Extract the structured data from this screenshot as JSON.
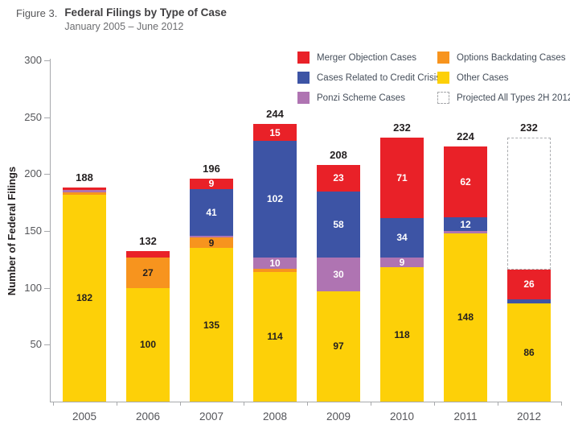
{
  "header": {
    "figure_label": "Figure 3.",
    "title": "Federal Filings by Type of Case",
    "subtitle": "January 2005 – June 2012"
  },
  "chart_data": {
    "type": "bar",
    "subtype": "stacked",
    "title": "Federal Filings by Type of Case",
    "subtitle": "January 2005 – June 2012",
    "xlabel": "",
    "ylabel": "Number of Federal Filings",
    "ylim": [
      0,
      300
    ],
    "yticks": [
      50,
      100,
      150,
      200,
      250,
      300
    ],
    "grid": false,
    "legend_position": "top-right",
    "series": [
      {
        "id": "merger",
        "label": "Merger Objection Cases",
        "color": "#E92128",
        "value_label_color": "#FFFFFF"
      },
      {
        "id": "credit",
        "label": "Cases Related to Credit Crisis",
        "color": "#3D54A5",
        "value_label_color": "#FFFFFF"
      },
      {
        "id": "ponzi",
        "label": "Ponzi Scheme Cases",
        "color": "#AF74B2",
        "value_label_color": "#FFFFFF"
      },
      {
        "id": "options",
        "label": "Options Backdating Cases",
        "color": "#F7941E",
        "value_label_color": "#231F20"
      },
      {
        "id": "other",
        "label": "Other Cases",
        "color": "#FDD008",
        "value_label_color": "#231F20"
      },
      {
        "id": "projected",
        "label": "Projected All Types 2H 2012",
        "swatch": "dashed"
      }
    ],
    "legend_order": [
      "merger",
      "options",
      "credit",
      "other",
      "ponzi",
      "projected"
    ],
    "categories": [
      "2005",
      "2006",
      "2007",
      "2008",
      "2009",
      "2010",
      "2011",
      "2012"
    ],
    "bars": [
      {
        "category": "2005",
        "total": 188,
        "segments": [
          {
            "series": "other",
            "value": 182,
            "label": "182"
          },
          {
            "series": "options",
            "value": 2
          },
          {
            "series": "ponzi",
            "value": 2
          },
          {
            "series": "merger",
            "value": 2
          }
        ]
      },
      {
        "category": "2006",
        "total": 132,
        "segments": [
          {
            "series": "other",
            "value": 100,
            "label": "100"
          },
          {
            "series": "options",
            "value": 27,
            "label": "27"
          },
          {
            "series": "merger",
            "value": 5
          }
        ]
      },
      {
        "category": "2007",
        "total": 196,
        "segments": [
          {
            "series": "other",
            "value": 135,
            "label": "135"
          },
          {
            "series": "options",
            "value": 9,
            "label": "9"
          },
          {
            "series": "ponzi",
            "value": 2
          },
          {
            "series": "credit",
            "value": 41,
            "label": "41"
          },
          {
            "series": "merger",
            "value": 9,
            "label": "9"
          }
        ]
      },
      {
        "category": "2008",
        "total": 244,
        "segments": [
          {
            "series": "other",
            "value": 114,
            "label": "114"
          },
          {
            "series": "options",
            "value": 3
          },
          {
            "series": "ponzi",
            "value": 10,
            "label": "10"
          },
          {
            "series": "credit",
            "value": 102,
            "label": "102"
          },
          {
            "series": "merger",
            "value": 15,
            "label": "15"
          }
        ]
      },
      {
        "category": "2009",
        "total": 208,
        "segments": [
          {
            "series": "other",
            "value": 97,
            "label": "97"
          },
          {
            "series": "ponzi",
            "value": 30,
            "label": "30"
          },
          {
            "series": "credit",
            "value": 58,
            "label": "58"
          },
          {
            "series": "merger",
            "value": 23,
            "label": "23"
          }
        ]
      },
      {
        "category": "2010",
        "total": 232,
        "segments": [
          {
            "series": "other",
            "value": 118,
            "label": "118"
          },
          {
            "series": "ponzi",
            "value": 9,
            "label": "9"
          },
          {
            "series": "credit",
            "value": 34,
            "label": "34"
          },
          {
            "series": "merger",
            "value": 71,
            "label": "71"
          }
        ]
      },
      {
        "category": "2011",
        "total": 224,
        "segments": [
          {
            "series": "other",
            "value": 148,
            "label": "148"
          },
          {
            "series": "ponzi",
            "value": 2
          },
          {
            "series": "credit",
            "value": 12,
            "label": "12"
          },
          {
            "series": "merger",
            "value": 62,
            "label": "62"
          }
        ]
      },
      {
        "category": "2012",
        "total": 232,
        "actual_total": 116,
        "projected_total": 232,
        "segments": [
          {
            "series": "other",
            "value": 86,
            "label": "86"
          },
          {
            "series": "credit",
            "value": 4
          },
          {
            "series": "merger",
            "value": 26,
            "label": "26"
          }
        ]
      }
    ]
  }
}
